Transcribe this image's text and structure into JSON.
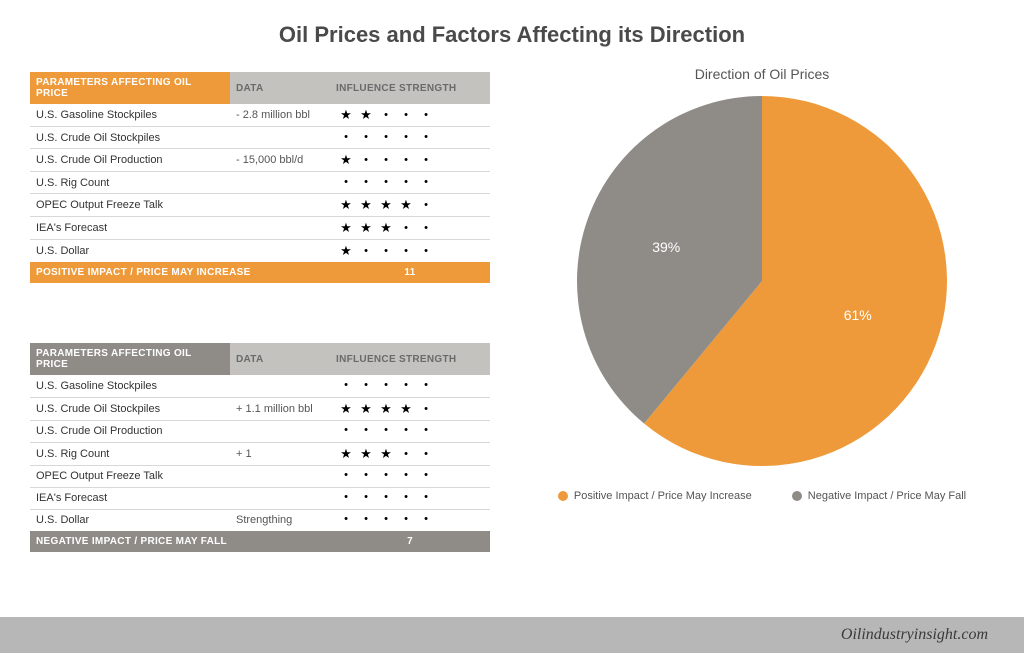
{
  "title": "Oil Prices and Factors Affecting its Direction",
  "footer_text": "Oilindustryinsight.com",
  "colors": {
    "orange": "#ee9a3a",
    "gray": "#8f8c88",
    "data_header_bg": "#c3c2be",
    "data_header_fg": "#6a6a6a",
    "page_bg": "#ffffff",
    "footer_bg": "#b7b7b7"
  },
  "tables": [
    {
      "header_bg": "#ee9a3a",
      "footer_bg": "#ee9a3a",
      "columns": [
        "PARAMETERS AFFECTING OIL PRICE",
        "DATA",
        "INFLUENCE STRENGTH"
      ],
      "rows": [
        {
          "param": "U.S. Gasoline Stockpiles",
          "data": "- 2.8 million bbl",
          "stars": 2
        },
        {
          "param": "U.S. Crude Oil Stockpiles",
          "data": "",
          "stars": 0
        },
        {
          "param": "U.S. Crude Oil Production",
          "data": "- 15,000 bbl/d",
          "stars": 1
        },
        {
          "param": "U.S. Rig Count",
          "data": "",
          "stars": 0
        },
        {
          "param": "OPEC Output Freeze Talk",
          "data": "",
          "stars": 4
        },
        {
          "param": "IEA's Forecast",
          "data": "",
          "stars": 3
        },
        {
          "param": "U.S. Dollar",
          "data": "",
          "stars": 1
        }
      ],
      "footer_label": "POSITIVE IMPACT / PRICE MAY INCREASE",
      "footer_total": "11"
    },
    {
      "header_bg": "#8f8c88",
      "footer_bg": "#8f8c88",
      "columns": [
        "PARAMETERS AFFECTING OIL PRICE",
        "DATA",
        "INFLUENCE STRENGTH"
      ],
      "rows": [
        {
          "param": "U.S. Gasoline Stockpiles",
          "data": "",
          "stars": 0
        },
        {
          "param": "U.S. Crude Oil Stockpiles",
          "data": "+ 1.1 million bbl",
          "stars": 4
        },
        {
          "param": "U.S. Crude Oil Production",
          "data": "",
          "stars": 0
        },
        {
          "param": "U.S. Rig Count",
          "data": "+ 1",
          "stars": 3
        },
        {
          "param": "OPEC Output Freeze Talk",
          "data": "",
          "stars": 0
        },
        {
          "param": "IEA's Forecast",
          "data": "",
          "stars": 0
        },
        {
          "param": "U.S. Dollar",
          "data": "Strengthing",
          "stars": 0
        }
      ],
      "footer_label": "NEGATIVE IMPACT / PRICE MAY FALL",
      "footer_total": "7"
    }
  ],
  "chart": {
    "type": "pie",
    "title": "Direction of Oil Prices",
    "slices": [
      {
        "label": "61%",
        "value": 61,
        "color": "#ee9a3a",
        "legend": "Positive Impact / Price May Increase"
      },
      {
        "label": "39%",
        "value": 39,
        "color": "#8f8c88",
        "legend": "Negative Impact / Price May Fall"
      }
    ],
    "start_angle_deg": 0,
    "radius": 185,
    "label_fontsize": 14,
    "label_color": "#ffffff"
  }
}
